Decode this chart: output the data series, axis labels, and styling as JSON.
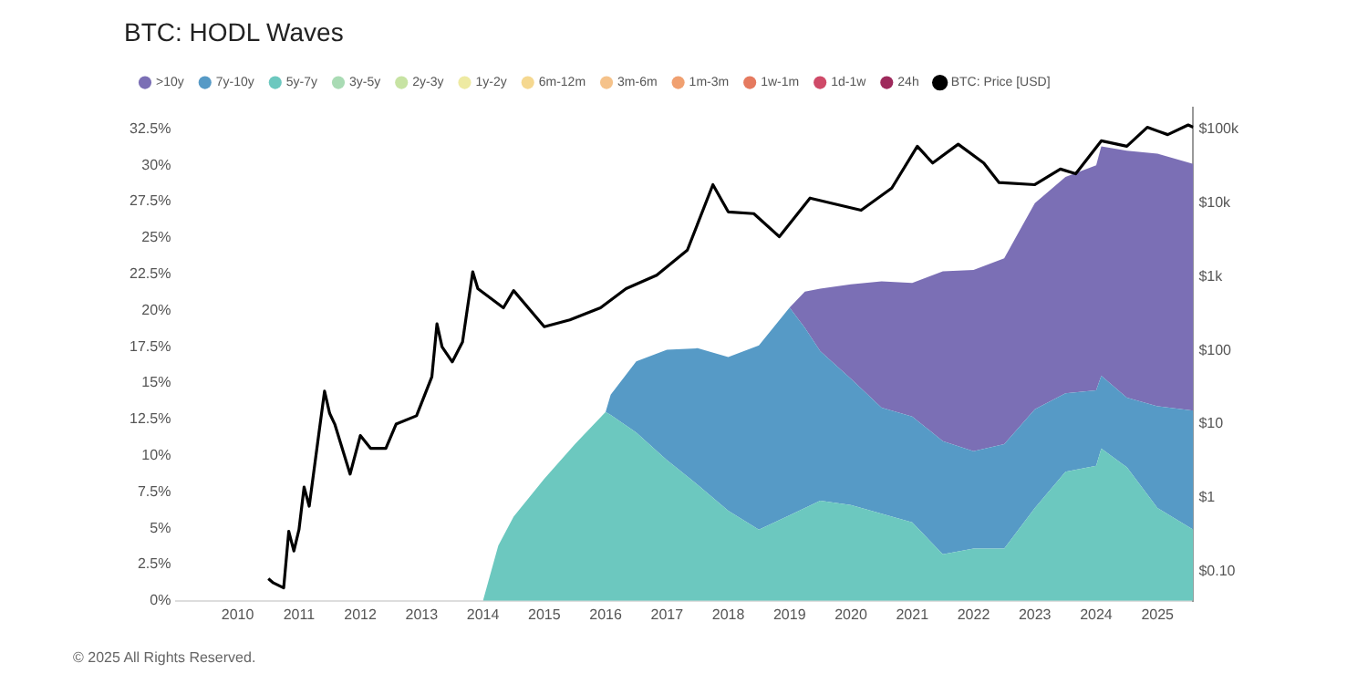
{
  "chart_data": {
    "type": "area",
    "title": "BTC: HODL Waves",
    "x": [
      "2014-01",
      "2014-04",
      "2014-07",
      "2015-01",
      "2015-07",
      "2016-01",
      "2016-02",
      "2016-07",
      "2017-01",
      "2017-07",
      "2018-01",
      "2018-07",
      "2019-01",
      "2019-04",
      "2019-07",
      "2020-01",
      "2020-07",
      "2021-01",
      "2021-07",
      "2022-01",
      "2022-07",
      "2023-01",
      "2023-07",
      "2024-01",
      "2024-02",
      "2024-07",
      "2025-01",
      "2025-08"
    ],
    "series": [
      {
        "name": "24h",
        "color": "#9e2a5c",
        "values": [
          null,
          null,
          null,
          null,
          null,
          null,
          null,
          null,
          null,
          null,
          null,
          null,
          null,
          null,
          null,
          null,
          null,
          null,
          null,
          null,
          null,
          null,
          null,
          null,
          null,
          null,
          null,
          null
        ]
      },
      {
        "name": "1d-1w",
        "color": "#cf4a68",
        "values": [
          null,
          null,
          null,
          null,
          null,
          null,
          null,
          null,
          null,
          null,
          null,
          null,
          null,
          null,
          null,
          null,
          null,
          null,
          null,
          null,
          null,
          null,
          null,
          null,
          null,
          null,
          null,
          null
        ]
      },
      {
        "name": "1w-1m",
        "color": "#e57a5f",
        "values": [
          null,
          null,
          null,
          null,
          null,
          null,
          null,
          null,
          null,
          null,
          null,
          null,
          null,
          null,
          null,
          null,
          null,
          null,
          null,
          null,
          null,
          null,
          null,
          null,
          null,
          null,
          null,
          null
        ]
      },
      {
        "name": "1m-3m",
        "color": "#f0a070",
        "values": [
          null,
          null,
          null,
          null,
          null,
          null,
          null,
          null,
          null,
          null,
          null,
          null,
          null,
          null,
          null,
          null,
          null,
          null,
          null,
          null,
          null,
          null,
          null,
          null,
          null,
          null,
          null,
          null
        ]
      },
      {
        "name": "3m-6m",
        "color": "#f5c28a",
        "values": [
          null,
          null,
          null,
          null,
          null,
          null,
          null,
          null,
          null,
          null,
          null,
          null,
          null,
          null,
          null,
          null,
          null,
          null,
          null,
          null,
          null,
          null,
          null,
          null,
          null,
          null,
          null,
          null
        ]
      },
      {
        "name": "6m-12m",
        "color": "#f5d890",
        "values": [
          null,
          null,
          null,
          null,
          null,
          null,
          null,
          null,
          null,
          null,
          null,
          null,
          null,
          null,
          null,
          null,
          null,
          null,
          null,
          null,
          null,
          null,
          null,
          null,
          null,
          null,
          null,
          null
        ]
      },
      {
        "name": "1y-2y",
        "color": "#eeeaa2",
        "values": [
          null,
          null,
          null,
          null,
          null,
          null,
          null,
          null,
          null,
          null,
          null,
          null,
          null,
          null,
          null,
          null,
          null,
          null,
          null,
          null,
          null,
          null,
          null,
          null,
          null,
          null,
          null,
          null
        ]
      },
      {
        "name": "2y-3y",
        "color": "#c7e3a3",
        "values": [
          null,
          null,
          null,
          null,
          null,
          null,
          null,
          null,
          null,
          null,
          null,
          null,
          null,
          null,
          null,
          null,
          null,
          null,
          null,
          null,
          null,
          null,
          null,
          null,
          null,
          null,
          null,
          null
        ]
      },
      {
        "name": "3y-5y",
        "color": "#a9dbb4",
        "values": [
          null,
          null,
          null,
          null,
          null,
          null,
          null,
          null,
          null,
          null,
          null,
          null,
          null,
          null,
          null,
          null,
          null,
          null,
          null,
          null,
          null,
          null,
          null,
          null,
          null,
          null,
          null,
          null
        ]
      },
      {
        "name": "5y-7y",
        "color": "#6cc8bf",
        "values": [
          0,
          3.8,
          5.8,
          8.4,
          10.8,
          13.0,
          12.8,
          11.6,
          9.7,
          8.0,
          6.2,
          4.9,
          5.9,
          6.4,
          6.9,
          6.6,
          6.0,
          5.4,
          3.2,
          3.6,
          3.6,
          6.4,
          8.9,
          9.3,
          10.5,
          9.2,
          6.4,
          4.9
        ]
      },
      {
        "name": "7y-10y",
        "color": "#569ac6",
        "values": [
          null,
          null,
          null,
          null,
          null,
          0,
          1.4,
          4.9,
          7.6,
          9.4,
          10.6,
          12.7,
          14.3,
          12.4,
          10.3,
          8.7,
          7.3,
          7.3,
          7.8,
          6.7,
          7.2,
          6.8,
          5.4,
          5.2,
          5.0,
          4.8,
          7.0,
          8.2
        ]
      },
      {
        "name": ">10y",
        "color": "#7b6fb5",
        "values": [
          null,
          null,
          null,
          null,
          null,
          null,
          null,
          null,
          null,
          null,
          null,
          null,
          0,
          2.5,
          4.3,
          6.5,
          8.7,
          9.2,
          11.7,
          12.5,
          12.8,
          14.2,
          14.9,
          15.5,
          15.8,
          17.0,
          17.4,
          17.0
        ]
      },
      {
        "name": "BTC: Price [USD]",
        "type": "line",
        "axis": "y2",
        "color": "#000000",
        "x": [
          "2010-07",
          "2010-08",
          "2010-10",
          "2010-11",
          "2010-12",
          "2011-01",
          "2011-02",
          "2011-03",
          "2011-05",
          "2011-06",
          "2011-07",
          "2011-08",
          "2011-11",
          "2012-01",
          "2012-03",
          "2012-06",
          "2012-08",
          "2012-12",
          "2013-03",
          "2013-04",
          "2013-05",
          "2013-07",
          "2013-09",
          "2013-11",
          "2013-12",
          "2014-05",
          "2014-07",
          "2015-01",
          "2015-06",
          "2015-12",
          "2016-05",
          "2016-11",
          "2017-05",
          "2017-10",
          "2018-01",
          "2018-06",
          "2018-11",
          "2019-05",
          "2020-03",
          "2020-09",
          "2021-02",
          "2021-05",
          "2021-10",
          "2022-03",
          "2022-06",
          "2023-01",
          "2023-06",
          "2023-09",
          "2024-02",
          "2024-07",
          "2024-11",
          "2025-03",
          "2025-07",
          "2025-08"
        ],
        "values": [
          0.08,
          0.07,
          0.06,
          0.35,
          0.19,
          0.37,
          1.4,
          0.77,
          8.5,
          28,
          14,
          10,
          2.1,
          7,
          4.7,
          4.7,
          10,
          13,
          44,
          230,
          112,
          70,
          130,
          1170,
          690,
          380,
          650,
          210,
          260,
          380,
          690,
          1050,
          2300,
          17800,
          7600,
          7200,
          3500,
          11700,
          8000,
          16000,
          59000,
          35000,
          63000,
          35000,
          19000,
          17800,
          29000,
          25000,
          70000,
          59000,
          107000,
          85000,
          115000,
          107000
        ]
      }
    ],
    "stacked": true,
    "xlim": [
      "2009-01",
      "2025-08"
    ],
    "xticks": [
      "2010",
      "2011",
      "2012",
      "2013",
      "2014",
      "2015",
      "2016",
      "2017",
      "2018",
      "2019",
      "2020",
      "2021",
      "2022",
      "2023",
      "2024",
      "2025"
    ],
    "ylim": [
      0,
      34
    ],
    "yticks": [
      {
        "value": 0,
        "label": "0%"
      },
      {
        "value": 2.5,
        "label": "2.5%"
      },
      {
        "value": 5,
        "label": "5%"
      },
      {
        "value": 7.5,
        "label": "7.5%"
      },
      {
        "value": 10,
        "label": "10%"
      },
      {
        "value": 12.5,
        "label": "12.5%"
      },
      {
        "value": 15,
        "label": "15%"
      },
      {
        "value": 17.5,
        "label": "17.5%"
      },
      {
        "value": 20,
        "label": "20%"
      },
      {
        "value": 22.5,
        "label": "22.5%"
      },
      {
        "value": 25,
        "label": "25%"
      },
      {
        "value": 27.5,
        "label": "27.5%"
      },
      {
        "value": 30,
        "label": "30%"
      },
      {
        "value": 32.5,
        "label": "32.5%"
      }
    ],
    "y2lim": [
      0.04,
      200000
    ],
    "y2ticks": [
      {
        "value": 0.1,
        "label": "$0.10"
      },
      {
        "value": 1,
        "label": "$1"
      },
      {
        "value": 10,
        "label": "$10"
      },
      {
        "value": 100,
        "label": "$100"
      },
      {
        "value": 1000,
        "label": "$1k"
      },
      {
        "value": 10000,
        "label": "$10k"
      },
      {
        "value": 100000,
        "label": "$100k"
      }
    ],
    "log": "y2",
    "legend": "top left",
    "annotations": [
      "© 2025 All Rights Reserved."
    ]
  }
}
